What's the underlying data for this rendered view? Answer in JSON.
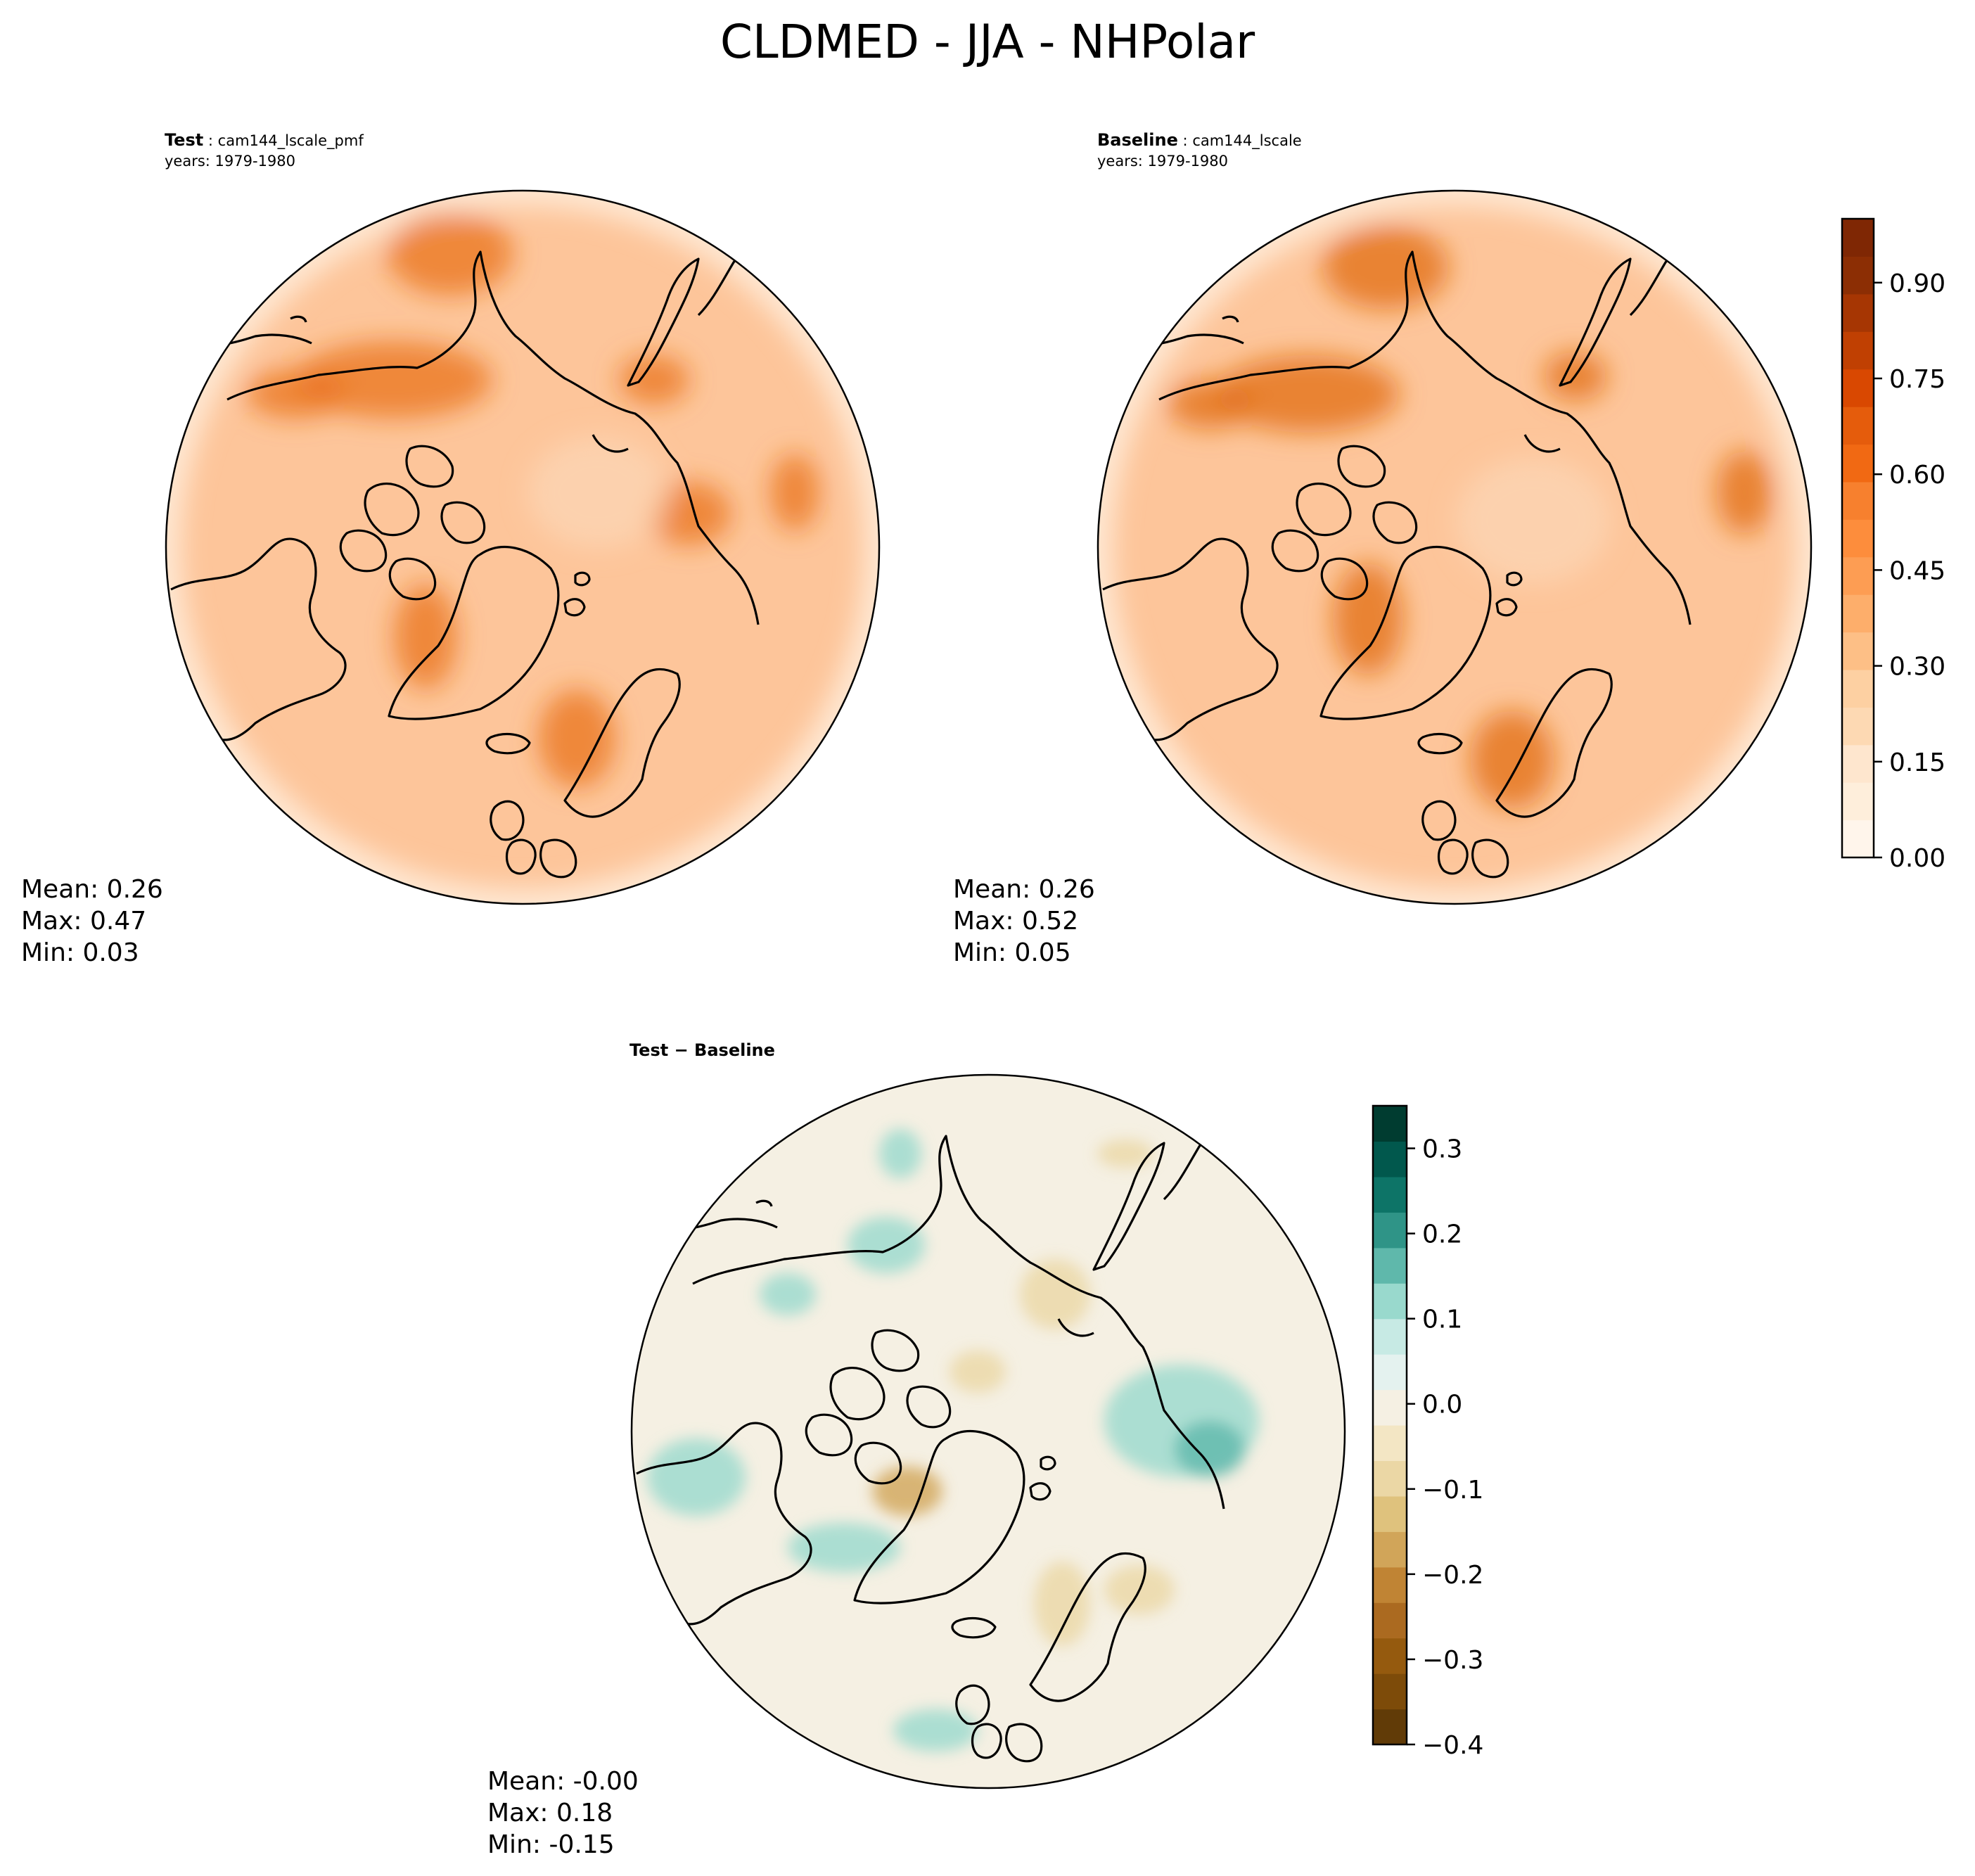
{
  "title": "CLDMED - JJA - NHPolar",
  "panels": {
    "test": {
      "label": "Test",
      "case": "cam144_lscale_pmf",
      "years": "years: 1979-1980",
      "mean": "Mean:  0.26",
      "max": "Max:  0.47",
      "min": "Min:  0.03"
    },
    "baseline": {
      "label": "Baseline",
      "case": "cam144_lscale",
      "years": "years: 1979-1980",
      "mean": "Mean:  0.26",
      "max": "Max:  0.52",
      "min": "Min:  0.05"
    },
    "diff": {
      "label": "Test − Baseline",
      "mean": "Mean: -0.00",
      "max": "Max:  0.18",
      "min": "Min: -0.15"
    }
  },
  "colorbars": {
    "main": {
      "min": 0.0,
      "max": 1.0,
      "ticks": [
        "0.00",
        "0.15",
        "0.30",
        "0.45",
        "0.60",
        "0.75",
        "0.90"
      ],
      "tick_values": [
        0.0,
        0.15,
        0.3,
        0.45,
        0.6,
        0.75,
        0.9
      ],
      "colors": [
        "#fff5eb",
        "#feeedb",
        "#fee6ce",
        "#fdd9b3",
        "#fdd0a2",
        "#fdbf86",
        "#fdae6b",
        "#fd9d53",
        "#fd8d3c",
        "#f7802e",
        "#f16913",
        "#e55c0c",
        "#d94801",
        "#c04002",
        "#a63603",
        "#8c2e04",
        "#7f2704"
      ]
    },
    "diff": {
      "min": -0.4,
      "max": 0.35,
      "ticks": [
        "0.3",
        "0.2",
        "0.1",
        "0.0",
        "−0.1",
        "−0.2",
        "−0.3",
        "−0.4"
      ],
      "tick_values": [
        0.3,
        0.2,
        0.1,
        0.0,
        -0.1,
        -0.2,
        -0.3,
        -0.4
      ],
      "colors": [
        "#613b07",
        "#7d4b09",
        "#955a0e",
        "#ab6a20",
        "#c08434",
        "#d1a559",
        "#dfc27d",
        "#ebd7a5",
        "#f3e6c4",
        "#f5f0e3",
        "#e4f2ef",
        "#c7eae4",
        "#99d9cd",
        "#5fb8ab",
        "#2f9487",
        "#0d7467",
        "#01584d",
        "#003c30"
      ]
    },
    "maps": {
      "test": {
        "base": "#fdc59a",
        "ocean": "#fdd5b3",
        "rim": "#fee7d2",
        "hot": "#e9731d"
      },
      "baseline": {
        "base": "#fdc59a",
        "ocean": "#fdd5b3",
        "rim": "#fee7d2",
        "hot": "#e26c16"
      },
      "diff": {
        "base": "#f5f0e3",
        "green": "#99d9cd",
        "green_dark": "#5fb8ab",
        "tan": "#ebd7a5",
        "tan_dark": "#d1a559"
      }
    }
  }
}
